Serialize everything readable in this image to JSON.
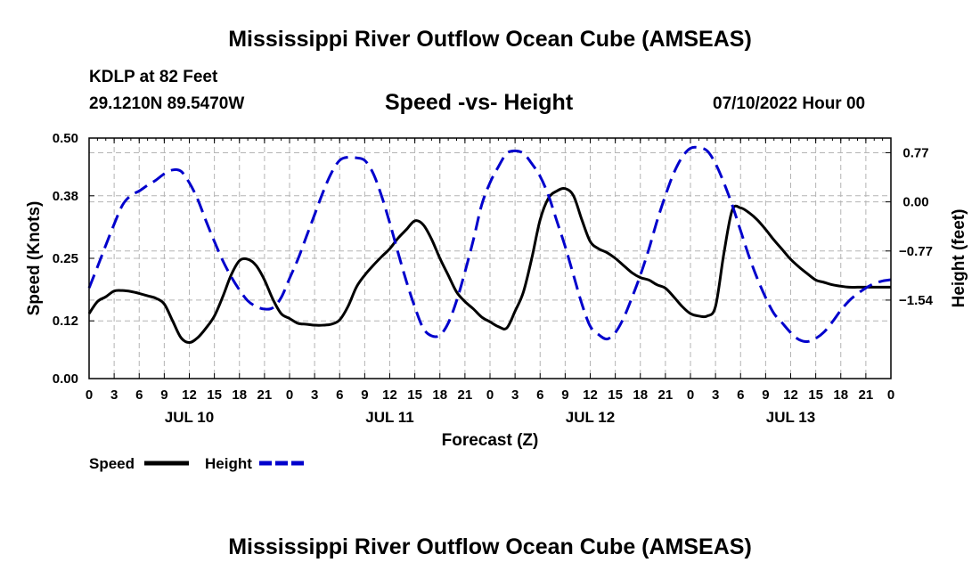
{
  "header": {
    "title": "Mississippi River Outflow Ocean Cube (AMSEAS)",
    "station": "KDLP at 82 Feet",
    "coordinates": "29.1210N  89.5470W",
    "date": "07/10/2022 Hour 00"
  },
  "footer": {
    "title": "Mississippi River Outflow Ocean Cube (AMSEAS)"
  },
  "colors": {
    "speed": "#000000",
    "height": "#0000cc",
    "grid": "#b4b4b4"
  },
  "chart_data": {
    "type": "line",
    "title": "Speed -vs- Height",
    "xlabel": "Forecast (Z)",
    "ylabel_left": "Speed (Knots)",
    "ylabel_right": "Height (feet)",
    "x_range_hours": [
      0,
      96
    ],
    "x_tick_step_hours": 3,
    "x_tick_labels": [
      "0",
      "3",
      "6",
      "9",
      "12",
      "15",
      "18",
      "21",
      "0",
      "3",
      "6",
      "9",
      "12",
      "15",
      "18",
      "21",
      "0",
      "3",
      "6",
      "9",
      "12",
      "15",
      "18",
      "21",
      "0",
      "3",
      "6",
      "9",
      "12",
      "15",
      "18",
      "21",
      "0"
    ],
    "day_labels": [
      {
        "label": "JUL 10",
        "hour": 12
      },
      {
        "label": "JUL 11",
        "hour": 36
      },
      {
        "label": "JUL 12",
        "hour": 60
      },
      {
        "label": "JUL 13",
        "hour": 84
      }
    ],
    "ylim_left": [
      0,
      0.5
    ],
    "yticks_left": [
      0.0,
      0.12,
      0.25,
      0.38,
      0.5
    ],
    "ytick_labels_left": [
      "0.00",
      "0.12",
      "0.25",
      "0.38",
      "0.50"
    ],
    "ylim_right": [
      -2.77,
      1.0
    ],
    "yticks_right": [
      -1.54,
      -0.77,
      0.0,
      0.77
    ],
    "ytick_labels_right": [
      "−1.54",
      "−0.77",
      "0.00",
      "0.77"
    ],
    "grid": true,
    "series": [
      {
        "name": "Speed",
        "axis": "left",
        "style": "solid",
        "x": [
          0,
          1,
          2,
          3,
          4,
          5,
          6,
          7,
          8,
          9,
          10,
          11,
          12,
          13,
          14,
          15,
          16,
          17,
          18,
          19,
          20,
          21,
          22,
          23,
          24,
          25,
          26,
          27,
          28,
          29,
          30,
          31,
          32,
          33,
          34,
          35,
          36,
          37,
          38,
          39,
          40,
          41,
          42,
          43,
          44,
          45,
          46,
          47,
          48,
          49,
          50,
          51,
          52,
          53,
          54,
          55,
          56,
          57,
          58,
          59,
          60,
          61,
          62,
          63,
          64,
          65,
          66,
          67,
          68,
          69,
          70,
          71,
          72,
          73,
          74,
          75,
          76,
          77,
          78,
          79,
          80,
          81,
          82,
          83,
          84,
          85,
          86,
          87,
          88,
          89,
          90,
          91,
          92,
          93,
          94,
          95,
          96
        ],
        "values": [
          0.135,
          0.16,
          0.17,
          0.182,
          0.183,
          0.181,
          0.177,
          0.172,
          0.167,
          0.155,
          0.12,
          0.085,
          0.075,
          0.085,
          0.105,
          0.13,
          0.17,
          0.215,
          0.245,
          0.248,
          0.235,
          0.205,
          0.165,
          0.135,
          0.125,
          0.115,
          0.113,
          0.111,
          0.111,
          0.113,
          0.122,
          0.15,
          0.19,
          0.215,
          0.235,
          0.253,
          0.27,
          0.292,
          0.31,
          0.328,
          0.32,
          0.29,
          0.25,
          0.215,
          0.18,
          0.16,
          0.145,
          0.128,
          0.118,
          0.108,
          0.105,
          0.14,
          0.18,
          0.25,
          0.33,
          0.375,
          0.39,
          0.395,
          0.38,
          0.33,
          0.285,
          0.27,
          0.262,
          0.25,
          0.235,
          0.22,
          0.21,
          0.205,
          0.195,
          0.188,
          0.17,
          0.15,
          0.135,
          0.13,
          0.13,
          0.15,
          0.26,
          0.35,
          0.355,
          0.345,
          0.33,
          0.31,
          0.288,
          0.268,
          0.248,
          0.232,
          0.218,
          0.205,
          0.2,
          0.195,
          0.192,
          0.19,
          0.19,
          0.19,
          0.19,
          0.19,
          0.19
        ]
      },
      {
        "name": "Height",
        "axis": "right",
        "style": "dashed",
        "x": [
          0,
          1,
          2,
          3,
          4,
          5,
          6,
          7,
          8,
          9,
          10,
          11,
          12,
          13,
          14,
          15,
          16,
          17,
          18,
          19,
          20,
          21,
          22,
          23,
          24,
          25,
          26,
          27,
          28,
          29,
          30,
          31,
          32,
          33,
          34,
          35,
          36,
          37,
          38,
          39,
          40,
          41,
          42,
          43,
          44,
          45,
          46,
          47,
          48,
          49,
          50,
          51,
          52,
          53,
          54,
          55,
          56,
          57,
          58,
          59,
          60,
          61,
          62,
          63,
          64,
          65,
          66,
          67,
          68,
          69,
          70,
          71,
          72,
          73,
          74,
          75,
          76,
          77,
          78,
          79,
          80,
          81,
          82,
          83,
          84,
          85,
          86,
          87,
          88,
          89,
          90,
          91,
          92,
          93,
          94,
          95,
          96
        ],
        "values": [
          -1.35,
          -1.02,
          -0.68,
          -0.35,
          -0.05,
          0.1,
          0.17,
          0.26,
          0.34,
          0.44,
          0.5,
          0.48,
          0.3,
          0.04,
          -0.3,
          -0.62,
          -0.92,
          -1.17,
          -1.38,
          -1.55,
          -1.64,
          -1.68,
          -1.66,
          -1.5,
          -1.2,
          -0.9,
          -0.55,
          -0.2,
          0.15,
          0.45,
          0.65,
          0.7,
          0.69,
          0.65,
          0.45,
          0.1,
          -0.33,
          -0.8,
          -1.25,
          -1.65,
          -1.98,
          -2.1,
          -2.09,
          -1.9,
          -1.55,
          -1.1,
          -0.6,
          -0.05,
          0.3,
          0.55,
          0.76,
          0.8,
          0.76,
          0.6,
          0.4,
          0.1,
          -0.3,
          -0.7,
          -1.15,
          -1.6,
          -1.95,
          -2.08,
          -2.15,
          -2.05,
          -1.82,
          -1.5,
          -1.15,
          -0.75,
          -0.3,
          0.1,
          0.45,
          0.7,
          0.84,
          0.85,
          0.8,
          0.6,
          0.3,
          -0.05,
          -0.45,
          -0.85,
          -1.2,
          -1.5,
          -1.75,
          -1.9,
          -2.05,
          -2.16,
          -2.19,
          -2.14,
          -2.04,
          -1.88,
          -1.7,
          -1.55,
          -1.44,
          -1.35,
          -1.28,
          -1.24,
          -1.22
        ]
      }
    ],
    "legend": [
      {
        "label": "Speed",
        "style": "solid"
      },
      {
        "label": "Height",
        "style": "dashed"
      }
    ],
    "legend_position": "bottom-left"
  }
}
